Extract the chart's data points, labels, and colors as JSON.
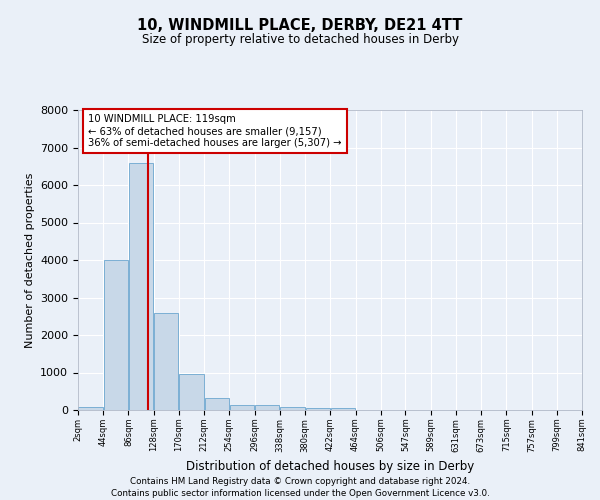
{
  "title1": "10, WINDMILL PLACE, DERBY, DE21 4TT",
  "title2": "Size of property relative to detached houses in Derby",
  "xlabel": "Distribution of detached houses by size in Derby",
  "ylabel": "Number of detached properties",
  "footnote1": "Contains HM Land Registry data © Crown copyright and database right 2024.",
  "footnote2": "Contains public sector information licensed under the Open Government Licence v3.0.",
  "annotation_line1": "10 WINDMILL PLACE: 119sqm",
  "annotation_line2": "← 63% of detached houses are smaller (9,157)",
  "annotation_line3": "36% of semi-detached houses are larger (5,307) →",
  "property_size_sqm": 119,
  "bin_edges": [
    2,
    44,
    86,
    128,
    170,
    212,
    254,
    296,
    338,
    380,
    422,
    464,
    506,
    547,
    589,
    631,
    673,
    715,
    757,
    799,
    841
  ],
  "bar_values": [
    70,
    4000,
    6600,
    2600,
    960,
    320,
    130,
    130,
    80,
    60,
    60,
    0,
    0,
    0,
    0,
    0,
    0,
    0,
    0,
    0
  ],
  "bar_color": "#c8d8e8",
  "bar_edge_color": "#7bafd4",
  "vline_color": "#cc0000",
  "vline_x": 119,
  "ylim": [
    0,
    8000
  ],
  "yticks": [
    0,
    1000,
    2000,
    3000,
    4000,
    5000,
    6000,
    7000,
    8000
  ],
  "bg_color": "#eaf0f8",
  "plot_bg_color": "#eaf0f8",
  "grid_color": "#ffffff",
  "annotation_box_color": "#cc0000"
}
